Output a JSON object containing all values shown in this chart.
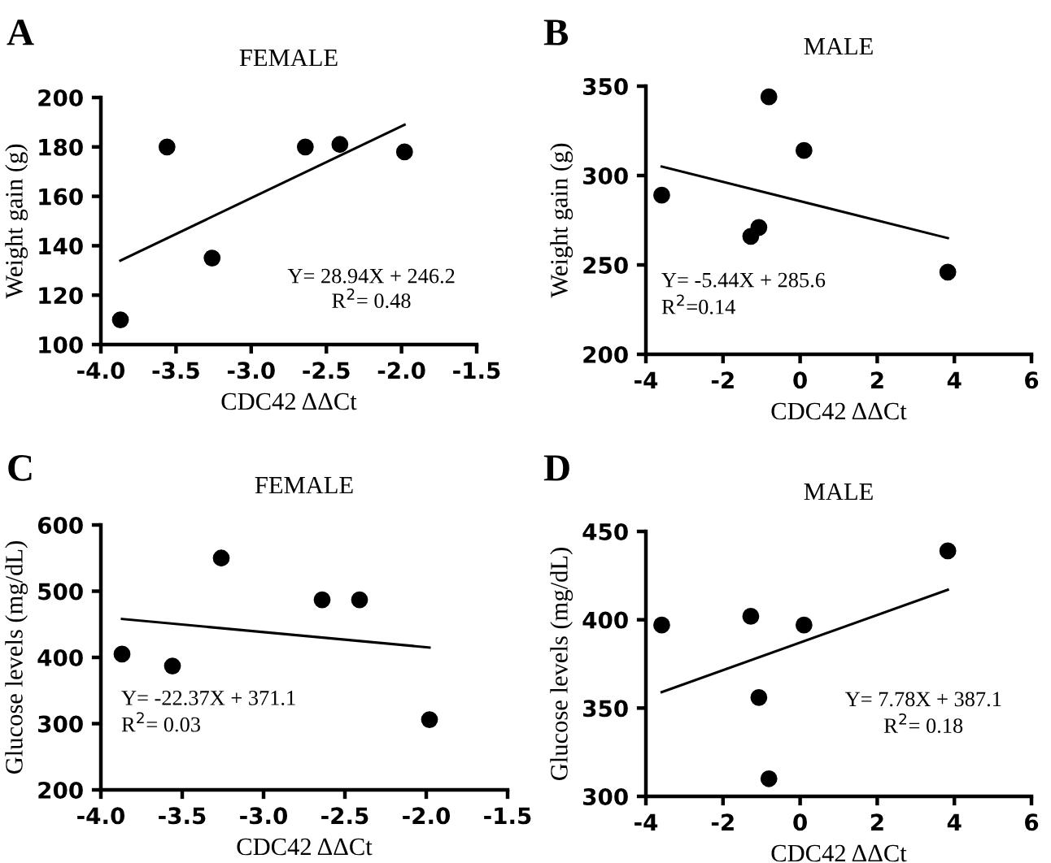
{
  "chart_data": [
    {
      "type": "scatter",
      "title": "FEMALE",
      "xlabel": "CDC42 ΔΔCt",
      "ylabel": "Weight gain (g)",
      "xlim": [
        -4,
        -1.5
      ],
      "xticks": [
        {
          "value": -4,
          "label": "-4.0"
        },
        {
          "value": -3.5,
          "label": "-3.5"
        },
        {
          "value": -3,
          "label": "-3.0"
        },
        {
          "value": -2.5,
          "label": "-2.5"
        },
        {
          "value": -2,
          "label": "-2.0"
        },
        {
          "value": -1.5,
          "label": "-1.5"
        }
      ],
      "ylim": [
        100,
        200
      ],
      "yticks": [
        100,
        120,
        140,
        160,
        180,
        200
      ],
      "marker": "circle",
      "series": [
        {
          "x": [
            -3.87,
            -3.56,
            -3.26,
            -2.64,
            -2.41,
            -1.98
          ],
          "values": [
            110,
            180,
            135,
            180,
            181,
            178
          ],
          "color": "#000000"
        },
        {
          "type": "line",
          "x": [
            -3.87,
            -1.98
          ],
          "values": [
            134,
            189
          ],
          "color": "#000000",
          "marker": "none"
        }
      ],
      "annotations": [
        "A",
        "Y= 28.94X + 246.2",
        "R$^{2}$= 0.48"
      ]
    },
    {
      "type": "scatter",
      "title": "MALE",
      "xlabel": "CDC42 ΔΔCt",
      "ylabel": "Weight gain (g)",
      "xlim": [
        -4,
        6
      ],
      "xticks": [
        -4,
        -2,
        0,
        2,
        4,
        6
      ],
      "ylim": [
        200,
        350
      ],
      "yticks": [
        200,
        250,
        300,
        350
      ],
      "marker": "circle",
      "series": [
        {
          "x": [
            -3.59,
            -1.28,
            -1.07,
            -0.81,
            0.1,
            3.83
          ],
          "values": [
            289,
            266,
            271,
            344,
            314,
            246
          ],
          "color": "#000000"
        },
        {
          "type": "line",
          "x": [
            -3.59,
            3.83
          ],
          "values": [
            305,
            265
          ],
          "color": "#000000",
          "marker": "none"
        }
      ],
      "annotations": [
        "B",
        "Y= -5.44X + 285.6",
        "R$^{2}$=0.14"
      ]
    },
    {
      "type": "scatter",
      "title": "FEMALE",
      "xlabel": "CDC42 ΔΔCt",
      "ylabel": "Glucose levels (mg/dL)",
      "xlim": [
        -4,
        -1.5
      ],
      "xticks": [
        {
          "value": -4,
          "label": "-4.0"
        },
        {
          "value": -3.5,
          "label": "-3.5"
        },
        {
          "value": -3,
          "label": "-3.0"
        },
        {
          "value": -2.5,
          "label": "-2.5"
        },
        {
          "value": -2,
          "label": "-2.0"
        },
        {
          "value": -1.5,
          "label": "-1.5"
        }
      ],
      "ylim": [
        200,
        600
      ],
      "yticks": [
        200,
        300,
        400,
        500,
        600
      ],
      "marker": "circle",
      "series": [
        {
          "x": [
            -3.87,
            -3.56,
            -3.26,
            -2.64,
            -2.41,
            -1.98
          ],
          "values": [
            405,
            387,
            550,
            487,
            487,
            306
          ],
          "color": "#000000"
        },
        {
          "type": "line",
          "x": [
            -3.87,
            -1.98
          ],
          "values": [
            458,
            415
          ],
          "color": "#000000",
          "marker": "none"
        }
      ],
      "annotations": [
        "C",
        "Y= -22.37X + 371.1",
        "R$^{2}$= 0.03"
      ]
    },
    {
      "type": "scatter",
      "title": "MALE",
      "xlabel": "CDC42 ΔΔCt",
      "ylabel": "Glucose levels (mg/dL)",
      "xlim": [
        -4,
        6
      ],
      "xticks": [
        -4,
        -2,
        0,
        2,
        4,
        6
      ],
      "ylim": [
        300,
        450
      ],
      "yticks": [
        300,
        350,
        400,
        450
      ],
      "marker": "circle",
      "series": [
        {
          "x": [
            -3.59,
            -1.28,
            -1.07,
            -0.81,
            0.1,
            3.83
          ],
          "values": [
            397,
            402,
            356,
            310,
            397,
            439
          ],
          "color": "#000000"
        },
        {
          "type": "line",
          "x": [
            -3.59,
            3.83
          ],
          "values": [
            359,
            417
          ],
          "color": "#000000",
          "marker": "none"
        }
      ],
      "annotations": [
        "D",
        "Y= 7.78X + 387.1",
        "R$^{2}$= 0.18"
      ]
    }
  ]
}
